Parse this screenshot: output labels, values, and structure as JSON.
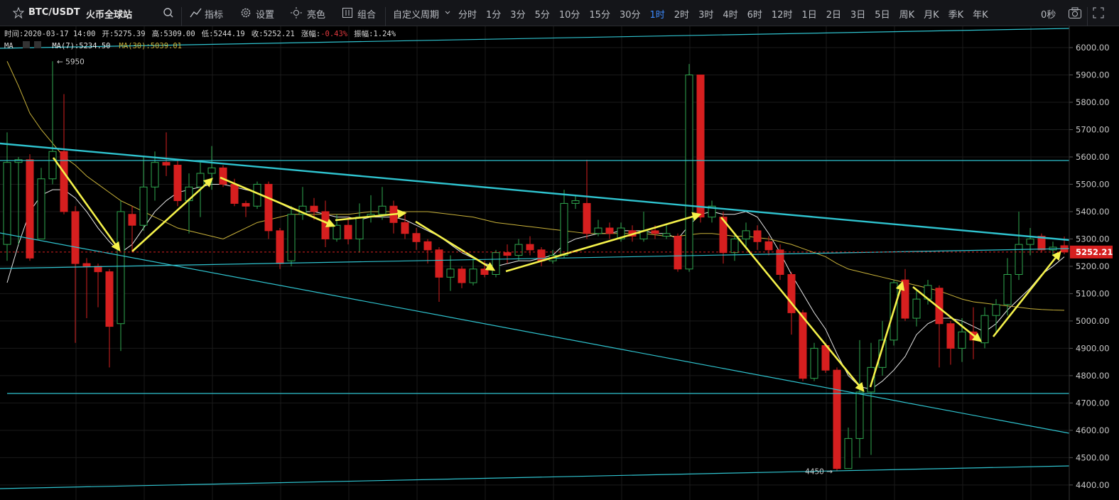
{
  "toolbar": {
    "pair": "BTC/USDT",
    "exchange": "火币全球站",
    "tools": [
      "指标",
      "设置",
      "亮色",
      "组合"
    ],
    "custom_period": "自定义周期",
    "periods": [
      {
        "label": "分时"
      },
      {
        "label": "1分"
      },
      {
        "label": "3分"
      },
      {
        "label": "5分"
      },
      {
        "label": "10分"
      },
      {
        "label": "15分"
      },
      {
        "label": "30分"
      },
      {
        "label": "1时",
        "active": true
      },
      {
        "label": "2时"
      },
      {
        "label": "3时"
      },
      {
        "label": "4时"
      },
      {
        "label": "6时"
      },
      {
        "label": "12时"
      },
      {
        "label": "1日"
      },
      {
        "label": "2日"
      },
      {
        "label": "3日"
      },
      {
        "label": "5日"
      },
      {
        "label": "周K"
      },
      {
        "label": "月K"
      },
      {
        "label": "季K"
      },
      {
        "label": "年K"
      }
    ],
    "timer": "0秒"
  },
  "chart_data": {
    "type": "candlestick",
    "info": [
      {
        "label": "时间:",
        "value": "2020-03-17 14:00"
      },
      {
        "label": "开:",
        "value": "5275.39"
      },
      {
        "label": "高:",
        "value": "5309.00"
      },
      {
        "label": "低:",
        "value": "5244.19"
      },
      {
        "label": "收:",
        "value": "5252.21"
      },
      {
        "label": "涨幅:",
        "value": "-0.43%",
        "color": "#e0393e"
      },
      {
        "label": "振幅:",
        "value": "1.24%"
      }
    ],
    "indicator": "MA",
    "up_color": "#2fa84f",
    "down_color": "#d61f1f",
    "open": [
      5280,
      5580,
      5590,
      5300,
      5520,
      5620,
      5400,
      5210,
      5200,
      5180,
      4990,
      5390,
      5350,
      5490,
      5580,
      5570,
      5440,
      5490,
      5540,
      5560,
      5500,
      5430,
      5420,
      5500,
      5330,
      5220,
      5390,
      5420,
      5400,
      5300,
      5350,
      5300,
      5380,
      5390,
      5420,
      5360,
      5320,
      5290,
      5260,
      5160,
      5190,
      5140,
      5190,
      5170,
      5250,
      5240,
      5280,
      5260,
      5220,
      5240,
      5430,
      5430,
      5320,
      5340,
      5300,
      5330,
      5300,
      5330,
      5310,
      5310,
      5190,
      5900,
      5380,
      5380,
      5250,
      5300,
      5330,
      5290,
      5260,
      5170,
      5030,
      4790,
      4910,
      4820,
      4460,
      4570,
      4740,
      4830,
      4930,
      5150,
      5010,
      5080,
      5120,
      4990,
      4900,
      4960,
      4920,
      5020,
      5060,
      5170,
      5280,
      5310,
      5260,
      5275.39
    ],
    "high": [
      5690,
      5600,
      5610,
      5560,
      5950,
      5830,
      5420,
      5230,
      5210,
      5190,
      5440,
      5420,
      5600,
      5620,
      5690,
      5590,
      5540,
      5580,
      5640,
      5570,
      5520,
      5440,
      5510,
      5510,
      5340,
      5420,
      5490,
      5450,
      5440,
      5390,
      5380,
      5430,
      5460,
      5490,
      5440,
      5390,
      5340,
      5300,
      5270,
      5240,
      5200,
      5230,
      5220,
      5260,
      5280,
      5300,
      5310,
      5270,
      5260,
      5480,
      5460,
      5590,
      5370,
      5360,
      5360,
      5350,
      5400,
      5350,
      5350,
      5320,
      5940,
      5900,
      5440,
      5400,
      5320,
      5360,
      5350,
      5310,
      5280,
      5180,
      5040,
      4920,
      4920,
      4830,
      4610,
      4930,
      4920,
      5000,
      5150,
      5190,
      5110,
      5150,
      5130,
      5000,
      5010,
      5050,
      5050,
      5080,
      5230,
      5400,
      5340,
      5320,
      5290,
      5309
    ],
    "low": [
      5220,
      5280,
      5220,
      5300,
      5500,
      5390,
      4920,
      5010,
      5050,
      4830,
      4890,
      5250,
      5330,
      5440,
      5530,
      5420,
      5320,
      5380,
      5480,
      5490,
      5420,
      5380,
      5410,
      5300,
      5190,
      5200,
      5370,
      5370,
      5270,
      5290,
      5280,
      5250,
      5360,
      5370,
      5320,
      5300,
      5260,
      5210,
      5070,
      5110,
      5120,
      5130,
      5160,
      5160,
      5210,
      5220,
      5240,
      5200,
      5210,
      5230,
      5410,
      5300,
      5310,
      5300,
      5290,
      5290,
      5290,
      5300,
      5300,
      5180,
      5180,
      5360,
      5360,
      5210,
      5220,
      5270,
      5260,
      5240,
      5150,
      4950,
      4780,
      4780,
      4810,
      4450,
      4460,
      4500,
      4510,
      4800,
      4910,
      5000,
      4980,
      5060,
      4830,
      4840,
      4850,
      4860,
      4900,
      4960,
      5020,
      5150,
      5240,
      5250,
      5240,
      5244.19
    ],
    "close": [
      5580,
      5590,
      5230,
      5520,
      5620,
      5400,
      5210,
      5200,
      5180,
      4980,
      5400,
      5350,
      5490,
      5580,
      5570,
      5440,
      5490,
      5540,
      5560,
      5500,
      5430,
      5420,
      5500,
      5330,
      5210,
      5390,
      5420,
      5400,
      5300,
      5350,
      5300,
      5380,
      5390,
      5420,
      5360,
      5320,
      5290,
      5260,
      5160,
      5190,
      5140,
      5190,
      5170,
      5250,
      5240,
      5280,
      5260,
      5220,
      5240,
      5430,
      5440,
      5320,
      5340,
      5320,
      5340,
      5310,
      5330,
      5320,
      5320,
      5190,
      5900,
      5380,
      5420,
      5250,
      5300,
      5330,
      5290,
      5260,
      5170,
      5030,
      4790,
      4900,
      4820,
      4460,
      4570,
      4740,
      4830,
      4930,
      5140,
      5010,
      5080,
      5130,
      4990,
      4900,
      4960,
      4930,
      5020,
      5060,
      5170,
      5280,
      5300,
      5260,
      5270,
      5252.21
    ],
    "series": [
      {
        "name": "MA(7):5234.50",
        "color": "#e8e8e8",
        "values": [
          5140,
          5280,
          5400,
          5460,
          5480,
          5480,
          5450,
          5400,
          5340,
          5290,
          5250,
          5280,
          5340,
          5400,
          5440,
          5470,
          5480,
          5490,
          5500,
          5500,
          5490,
          5480,
          5470,
          5450,
          5430,
          5410,
          5400,
          5400,
          5390,
          5380,
          5380,
          5370,
          5380,
          5380,
          5380,
          5370,
          5350,
          5330,
          5310,
          5280,
          5250,
          5230,
          5210,
          5200,
          5210,
          5220,
          5220,
          5230,
          5240,
          5280,
          5300,
          5310,
          5320,
          5320,
          5330,
          5330,
          5330,
          5320,
          5320,
          5300,
          5350,
          5390,
          5400,
          5390,
          5390,
          5400,
          5380,
          5320,
          5250,
          5170,
          5100,
          5030,
          4970,
          4880,
          4800,
          4760,
          4750,
          4780,
          4820,
          4870,
          4950,
          4990,
          5010,
          5010,
          5000,
          4980,
          4960,
          4990,
          5040,
          5080,
          5120,
          5170,
          5200,
          5234.5
        ]
      },
      {
        "name": "MA(30):5039.01",
        "color": "#c9b23a",
        "values": [
          5950,
          5860,
          5760,
          5700,
          5650,
          5600,
          5570,
          5530,
          5500,
          5470,
          5440,
          5420,
          5400,
          5380,
          5360,
          5340,
          5330,
          5320,
          5310,
          5300,
          5320,
          5340,
          5360,
          5370,
          5380,
          5390,
          5390,
          5390,
          5390,
          5390,
          5390,
          5395,
          5400,
          5400,
          5400,
          5400,
          5400,
          5400,
          5395,
          5390,
          5385,
          5380,
          5370,
          5360,
          5355,
          5350,
          5345,
          5340,
          5335,
          5330,
          5325,
          5320,
          5320,
          5320,
          5320,
          5320,
          5320,
          5315,
          5310,
          5310,
          5315,
          5320,
          5320,
          5315,
          5310,
          5310,
          5305,
          5300,
          5290,
          5280,
          5265,
          5250,
          5235,
          5210,
          5190,
          5180,
          5170,
          5160,
          5150,
          5140,
          5130,
          5120,
          5110,
          5095,
          5080,
          5070,
          5065,
          5060,
          5055,
          5050,
          5045,
          5042,
          5040,
          5039.01
        ]
      }
    ],
    "annotations": [
      {
        "text": "← 5950"
      },
      {
        "text": "4450 →"
      }
    ],
    "ylim": [
      4345,
      6078
    ],
    "yticks": [
      {
        "value": 4400,
        "label": "4400.00"
      },
      {
        "value": 4500,
        "label": "4500.00"
      },
      {
        "value": 4600,
        "label": "4600.00"
      },
      {
        "value": 4700,
        "label": "4700.00"
      },
      {
        "value": 4800,
        "label": "4800.00"
      },
      {
        "value": 4900,
        "label": "4900.00"
      },
      {
        "value": 5000,
        "label": "5000.00"
      },
      {
        "value": 5100,
        "label": "5100.00"
      },
      {
        "value": 5200,
        "label": "5200.00"
      },
      {
        "value": 5300,
        "label": "5300.00"
      },
      {
        "value": 5400,
        "label": "5400.00"
      },
      {
        "value": 5500,
        "label": "5500.00"
      },
      {
        "value": 5600,
        "label": "5600.00"
      },
      {
        "value": 5700,
        "label": "5700.00"
      },
      {
        "value": 5800,
        "label": "5800.00"
      },
      {
        "value": 5900,
        "label": "5900.00"
      },
      {
        "value": 6000,
        "label": "6000.00"
      }
    ],
    "grid": true
  }
}
